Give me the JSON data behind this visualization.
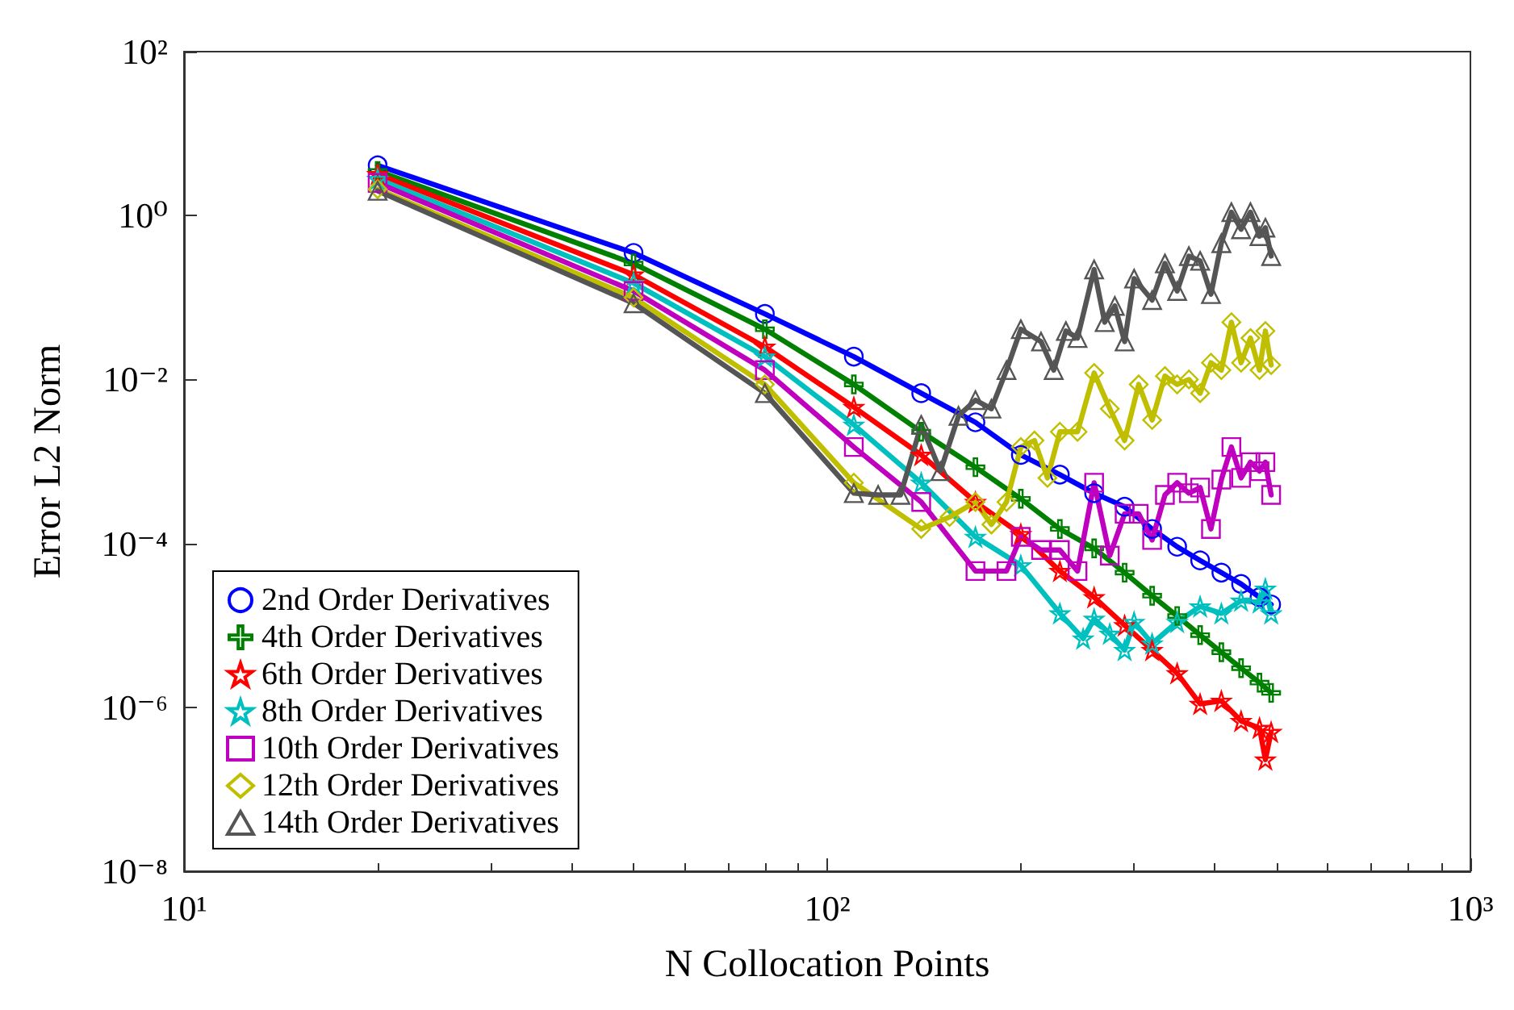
{
  "chart_data": {
    "type": "line",
    "xlabel": "N Collocation Points",
    "ylabel": "Error L2 Norm",
    "log": "xy",
    "xlim": [
      10,
      1000
    ],
    "ylim": [
      1e-08,
      100
    ],
    "xticks": [
      {
        "value": 10,
        "label": "10¹"
      },
      {
        "value": 100,
        "label": "10²"
      },
      {
        "value": 1000,
        "label": "10³"
      }
    ],
    "yticks": [
      {
        "value": 1e-08,
        "label": "10⁻⁸"
      },
      {
        "value": 1e-06,
        "label": "10⁻⁶"
      },
      {
        "value": 0.0001,
        "label": "10⁻⁴"
      },
      {
        "value": 0.01,
        "label": "10⁻²"
      },
      {
        "value": 1,
        "label": "10⁰"
      },
      {
        "value": 100,
        "label": "10²"
      }
    ],
    "grid": false,
    "legend": "bottom left",
    "line_style": "solid",
    "series": [
      {
        "name": "2nd Order Derivatives",
        "color": "#0000ff",
        "marker": "circle",
        "x": [
          20,
          50,
          80,
          110,
          140,
          170,
          200,
          230,
          260,
          290,
          320,
          350,
          380,
          410,
          440,
          470,
          490
        ],
        "values": [
          4.1,
          0.35,
          0.063,
          0.019,
          0.0068,
          0.003,
          0.0012,
          0.00069,
          0.00041,
          0.00028,
          0.00015,
          9.1e-05,
          6.2e-05,
          4.4e-05,
          3.2e-05,
          2.2e-05,
          1.8e-05
        ]
      },
      {
        "name": "4th Order Derivatives",
        "color": "#008000",
        "marker": "cross",
        "x": [
          20,
          50,
          80,
          110,
          140,
          170,
          200,
          230,
          260,
          290,
          320,
          350,
          380,
          410,
          440,
          470,
          490
        ],
        "values": [
          3.5,
          0.26,
          0.041,
          0.0087,
          0.0023,
          0.00085,
          0.00035,
          0.00015,
          8.7e-05,
          4.4e-05,
          2.3e-05,
          1.3e-05,
          7.6e-06,
          4.7e-06,
          3e-06,
          2e-06,
          1.5e-06
        ]
      },
      {
        "name": "6th Order Derivatives",
        "color": "#ff0000",
        "marker": "star",
        "x": [
          20,
          50,
          80,
          110,
          140,
          170,
          200,
          230,
          260,
          290,
          320,
          350,
          380,
          410,
          440,
          470,
          480,
          490
        ],
        "values": [
          3.2,
          0.19,
          0.025,
          0.0046,
          0.0012,
          0.00032,
          0.00013,
          4.6e-05,
          2.2e-05,
          1e-05,
          5e-06,
          2.6e-06,
          1.1e-06,
          1.2e-06,
          6.8e-07,
          5.6e-07,
          2.3e-07,
          5e-07
        ]
      },
      {
        "name": "8th Order Derivatives",
        "color": "#00bfbf",
        "marker": "star",
        "x": [
          20,
          50,
          80,
          110,
          140,
          170,
          200,
          230,
          250,
          260,
          275,
          290,
          300,
          320,
          350,
          380,
          410,
          440,
          470,
          480,
          490
        ],
        "values": [
          2.8,
          0.15,
          0.019,
          0.0028,
          0.00055,
          0.00012,
          5.4e-05,
          1.4e-05,
          6.9e-06,
          1.2e-05,
          7.9e-06,
          5e-06,
          1.1e-05,
          6e-06,
          1.1e-05,
          1.7e-05,
          1.4e-05,
          2e-05,
          1.9e-05,
          2.8e-05,
          1.4e-05
        ]
      },
      {
        "name": "10th Order Derivatives",
        "color": "#bf00bf",
        "marker": "square",
        "x": [
          20,
          50,
          80,
          110,
          140,
          170,
          190,
          200,
          215,
          230,
          245,
          260,
          275,
          290,
          305,
          320,
          335,
          350,
          365,
          380,
          395,
          410,
          425,
          440,
          455,
          470,
          480,
          490
        ],
        "values": [
          2.5,
          0.12,
          0.013,
          0.0015,
          0.00032,
          4.6e-05,
          4.6e-05,
          0.00012,
          8.3e-05,
          8.3e-05,
          4.6e-05,
          0.00055,
          7.1e-05,
          0.00023,
          0.00023,
          0.00011,
          0.00039,
          0.00055,
          0.00041,
          0.00048,
          0.00015,
          0.0006,
          0.0015,
          0.00063,
          0.00098,
          0.00076,
          0.00098,
          0.00039
        ]
      },
      {
        "name": "12th Order Derivatives",
        "color": "#bfbf00",
        "marker": "diamond",
        "x": [
          20,
          50,
          80,
          110,
          140,
          155,
          170,
          180,
          190,
          200,
          210,
          220,
          230,
          245,
          260,
          275,
          290,
          305,
          320,
          335,
          350,
          365,
          380,
          395,
          410,
          425,
          440,
          455,
          470,
          480,
          490
        ],
        "values": [
          2.1,
          0.1,
          0.0087,
          0.00055,
          0.00015,
          0.00021,
          0.00032,
          0.00017,
          0.00032,
          0.0015,
          0.0018,
          0.00063,
          0.0023,
          0.0023,
          0.012,
          0.0044,
          0.0018,
          0.0087,
          0.0032,
          0.011,
          0.0087,
          0.01,
          0.0068,
          0.016,
          0.013,
          0.05,
          0.016,
          0.032,
          0.013,
          0.039,
          0.015
        ]
      },
      {
        "name": "14th Order Derivatives",
        "color": "#555555",
        "marker": "triangle",
        "x": [
          20,
          50,
          80,
          110,
          120,
          130,
          140,
          150,
          160,
          170,
          180,
          190,
          200,
          215,
          225,
          235,
          245,
          260,
          270,
          280,
          290,
          300,
          320,
          335,
          350,
          365,
          380,
          395,
          410,
          425,
          440,
          455,
          470,
          480,
          490
        ],
        "values": [
          2.0,
          0.085,
          0.0068,
          0.00041,
          0.00039,
          0.00039,
          0.0028,
          0.00076,
          0.0036,
          0.0056,
          0.0044,
          0.013,
          0.041,
          0.029,
          0.013,
          0.039,
          0.032,
          0.22,
          0.05,
          0.079,
          0.029,
          0.17,
          0.093,
          0.26,
          0.12,
          0.32,
          0.28,
          0.11,
          0.46,
          1.1,
          0.68,
          1.1,
          0.56,
          0.71,
          0.32
        ]
      }
    ]
  }
}
